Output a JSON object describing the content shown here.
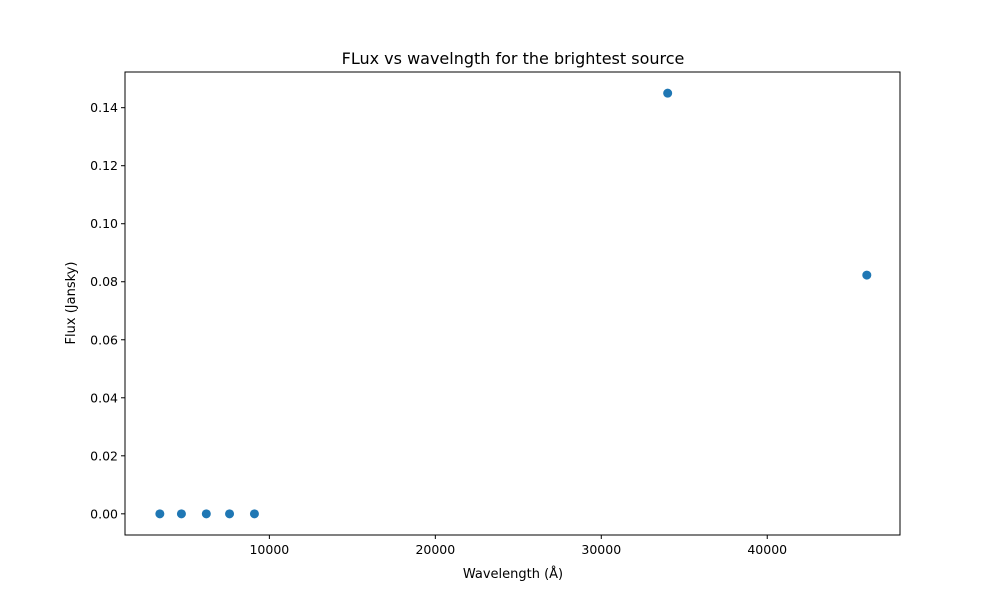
{
  "chart_data": {
    "type": "scatter",
    "title": "FLux vs wavelngth for the brightest source",
    "xlabel": "Wavelength (Å)",
    "ylabel": "Flux (Jansky)",
    "xlim": [
      1300,
      48000
    ],
    "ylim": [
      -0.0073,
      0.1523
    ],
    "xticks": [
      10000,
      20000,
      30000,
      40000
    ],
    "xtick_labels": [
      "10000",
      "20000",
      "30000",
      "40000"
    ],
    "yticks": [
      0.0,
      0.02,
      0.04,
      0.06,
      0.08,
      0.1,
      0.12,
      0.14
    ],
    "ytick_labels": [
      "0.00",
      "0.02",
      "0.04",
      "0.06",
      "0.08",
      "0.10",
      "0.12",
      "0.14"
    ],
    "grid": false,
    "legend": "none",
    "series": [
      {
        "color": "#1f77b4",
        "x": [
          3400,
          4700,
          6200,
          7600,
          9100,
          34000,
          46000
        ],
        "y": [
          0.0,
          0.0,
          0.0,
          0.0,
          0.0,
          0.145,
          0.0823
        ]
      }
    ]
  }
}
